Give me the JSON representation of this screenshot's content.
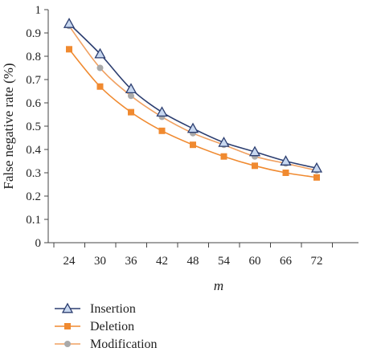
{
  "chart_data": {
    "type": "line",
    "xlabel": "m",
    "ylabel": "False negative rate (%)",
    "x": [
      24,
      30,
      36,
      42,
      48,
      54,
      60,
      66,
      72
    ],
    "ylim": [
      0,
      1
    ],
    "yticks": [
      "0",
      "0.1",
      "0.2",
      "0.3",
      "0.4",
      "0.5",
      "0.6",
      "0.7",
      "0.8",
      "0.9",
      "1"
    ],
    "grid": false,
    "legend_position": "bottom-left",
    "series": [
      {
        "name": "Insertion",
        "values": [
          0.94,
          0.81,
          0.66,
          0.56,
          0.49,
          0.43,
          0.39,
          0.35,
          0.32
        ],
        "color": "#2c3e70",
        "marker": "triangle"
      },
      {
        "name": "Deletion",
        "values": [
          0.83,
          0.67,
          0.56,
          0.48,
          0.42,
          0.37,
          0.33,
          0.3,
          0.28
        ],
        "color": "#f08a30",
        "marker": "square"
      },
      {
        "name": "Modification",
        "values": [
          0.93,
          0.75,
          0.63,
          0.54,
          0.47,
          0.42,
          0.37,
          0.34,
          0.31
        ],
        "color": "#f0a060",
        "marker": "circle"
      }
    ]
  }
}
